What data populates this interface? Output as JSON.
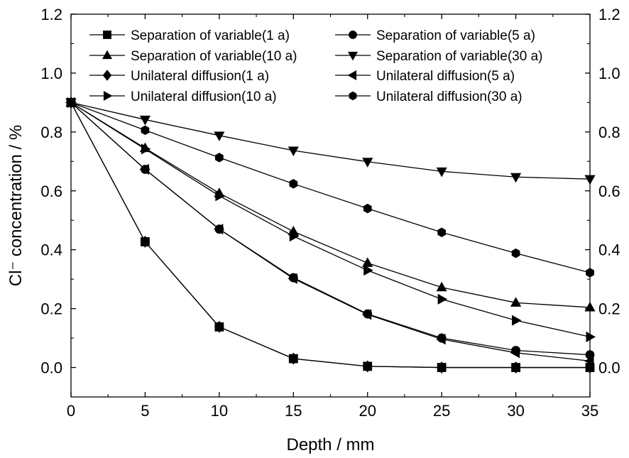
{
  "chart_data": {
    "type": "line",
    "xlabel": "Depth / mm",
    "ylabel": "Cl⁻ concentration / %",
    "xlim": [
      0,
      35
    ],
    "ylim": [
      -0.1,
      1.2
    ],
    "xticks": [
      "0",
      "5",
      "10",
      "15",
      "20",
      "25",
      "30",
      "35"
    ],
    "yticks": [
      "0.0",
      "0.2",
      "0.4",
      "0.6",
      "0.8",
      "1.0",
      "1.2"
    ],
    "right_axis_mirrored": true,
    "grid": false,
    "legend_position": "top, two columns",
    "x": [
      0,
      5,
      10,
      15,
      20,
      25,
      30,
      35
    ],
    "series": [
      {
        "name": "Separation of variable(1 a)",
        "marker": "square",
        "values": [
          0.9,
          0.427,
          0.138,
          0.03,
          0.004,
          0.0,
          0.0,
          0.0
        ]
      },
      {
        "name": "Separation of variable(5 a)",
        "marker": "circle",
        "values": [
          0.9,
          0.673,
          0.47,
          0.305,
          0.182,
          0.1,
          0.058,
          0.043
        ]
      },
      {
        "name": "Separation of variable(10 a)",
        "marker": "triangle-up",
        "values": [
          0.9,
          0.745,
          0.592,
          0.462,
          0.355,
          0.272,
          0.22,
          0.204
        ]
      },
      {
        "name": "Separation of variable(30 a)",
        "marker": "triangle-down",
        "values": [
          0.9,
          0.842,
          0.788,
          0.737,
          0.699,
          0.666,
          0.647,
          0.64
        ]
      },
      {
        "name": "Unilateral diffusion(1 a)",
        "marker": "diamond",
        "values": [
          0.9,
          0.427,
          0.138,
          0.03,
          0.004,
          0.0,
          0.0,
          0.0
        ]
      },
      {
        "name": "Unilateral diffusion(5 a)",
        "marker": "triangle-left",
        "values": [
          0.9,
          0.673,
          0.47,
          0.302,
          0.18,
          0.096,
          0.05,
          0.022
        ]
      },
      {
        "name": "Unilateral diffusion(10 a)",
        "marker": "triangle-right",
        "values": [
          0.9,
          0.742,
          0.583,
          0.446,
          0.33,
          0.232,
          0.16,
          0.104
        ]
      },
      {
        "name": "Unilateral diffusion(30 a)",
        "marker": "hexagon",
        "values": [
          0.9,
          0.806,
          0.713,
          0.624,
          0.54,
          0.459,
          0.388,
          0.322
        ]
      }
    ]
  }
}
